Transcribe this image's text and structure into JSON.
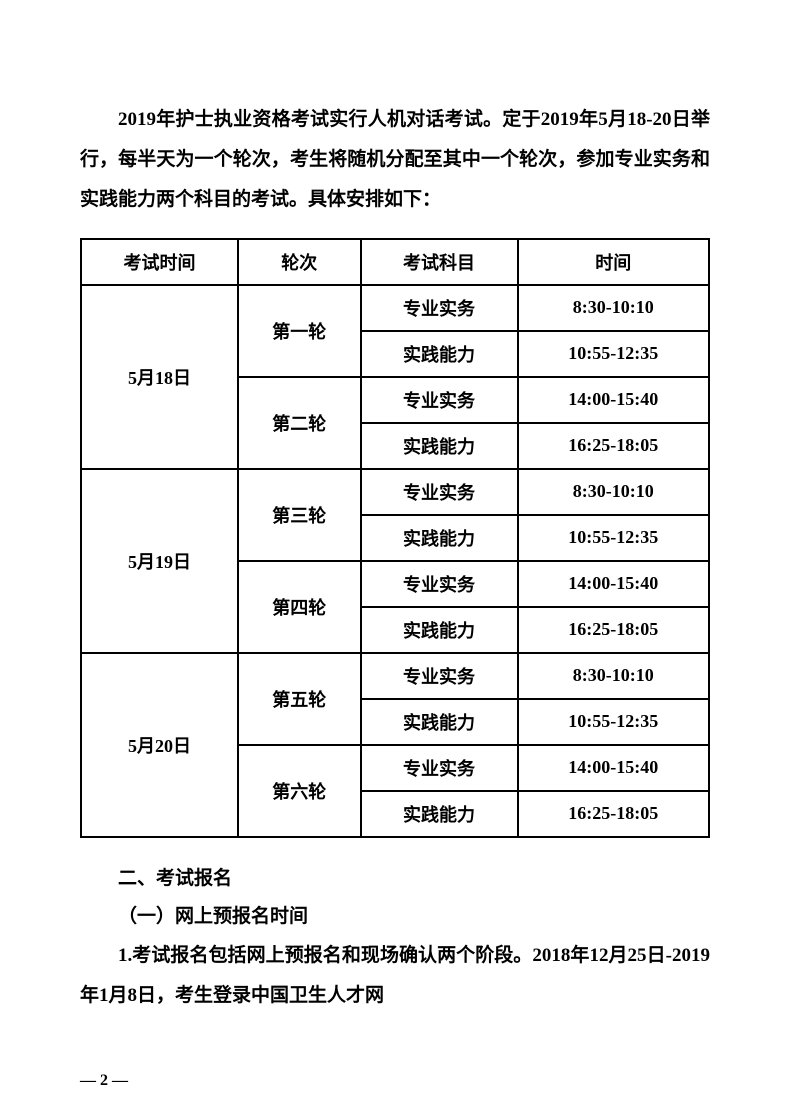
{
  "intro": "2019年护士执业资格考试实行人机对话考试。定于2019年5月18-20日举行，每半天为一个轮次，考生将随机分配至其中一个轮次，参加专业实务和实践能力两个科目的考试。具体安排如下：",
  "table": {
    "headers": [
      "考试时间",
      "轮次",
      "考试科目",
      "时间"
    ],
    "dates": [
      "5月18日",
      "5月19日",
      "5月20日"
    ],
    "rounds": [
      "第一轮",
      "第二轮",
      "第三轮",
      "第四轮",
      "第五轮",
      "第六轮"
    ],
    "subject_a": "专业实务",
    "subject_b": "实践能力",
    "time_a1": "8:30-10:10",
    "time_a2": "10:55-12:35",
    "time_b1": "14:00-15:40",
    "time_b2": "16:25-18:05"
  },
  "section": "二、考试报名",
  "sub": "（一）网上预报名时间",
  "body": "1.考试报名包括网上预报名和现场确认两个阶段。2018年12月25日-2019年1月8日，考生登录中国卫生人才网",
  "pagenum": "— 2 —"
}
